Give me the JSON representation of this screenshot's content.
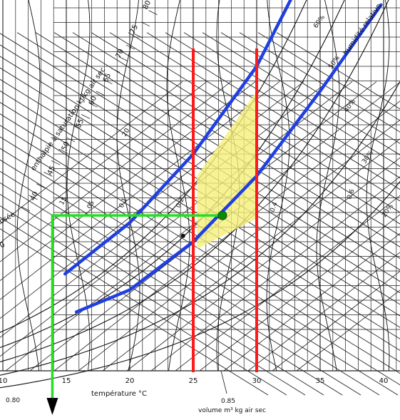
{
  "chart_data": {
    "type": "psychrometric",
    "xlabel": "température °C",
    "xticks": [
      {
        "text": "10",
        "value": 10
      },
      {
        "text": "15",
        "value": 15
      },
      {
        "text": "20",
        "value": 20
      },
      {
        "text": "25",
        "value": 25
      },
      {
        "text": "30",
        "value": 30
      },
      {
        "text": "35",
        "value": 35
      },
      {
        "text": "40",
        "value": 40
      }
    ],
    "xlim": [
      8,
      42
    ],
    "enthalpy_axis_label": "enthalpie à saturation kJ/kg air sec",
    "enthalpy_ticks": [
      "40",
      "45",
      "50",
      "55",
      "60",
      "65",
      "70",
      "75",
      "80"
    ],
    "dew_label": "rosée",
    "dew_partial_label": "0",
    "relative_humidity_label": "humidité relative",
    "rh_curves": [
      "20%",
      "30%",
      "40%",
      "50%",
      "60%"
    ],
    "rh_curve_values": [
      20,
      30,
      40,
      50,
      60
    ],
    "volume_label": "volume m³ kg air sec",
    "volume_ticks": [
      "0.80",
      "0.85"
    ],
    "inner_labels": [
      "15",
      "20",
      ".05",
      "0.1",
      "0.2",
      "0.4",
      "0.6"
    ],
    "red_lines": [
      25,
      30
    ],
    "blue_curves": [
      {
        "points": [
          [
            14.9,
            9.8
          ],
          [
            20,
            13.3
          ],
          [
            25,
            18.0
          ],
          [
            30,
            24.0
          ],
          [
            35,
            32.5
          ],
          [
            37,
            37.8
          ]
        ]
      },
      {
        "points": [
          [
            15.8,
            7.2
          ],
          [
            20,
            8.7
          ],
          [
            25,
            12.0
          ],
          [
            30,
            16.5
          ],
          [
            35,
            22.3
          ],
          [
            39.8,
            28.2
          ]
        ]
      }
    ],
    "comfort_zone": [
      [
        25.3,
        16.5
      ],
      [
        30,
        22.3
      ],
      [
        30,
        13.6
      ],
      [
        25.3,
        11.5
      ]
    ],
    "point": {
      "t": 27.3,
      "w": 13.8
    },
    "green_guide": {
      "from_t": 27.3,
      "corner_t": 13.9,
      "w": 13.8
    },
    "small_point": {
      "t": 24.2,
      "w": 12.4
    }
  }
}
